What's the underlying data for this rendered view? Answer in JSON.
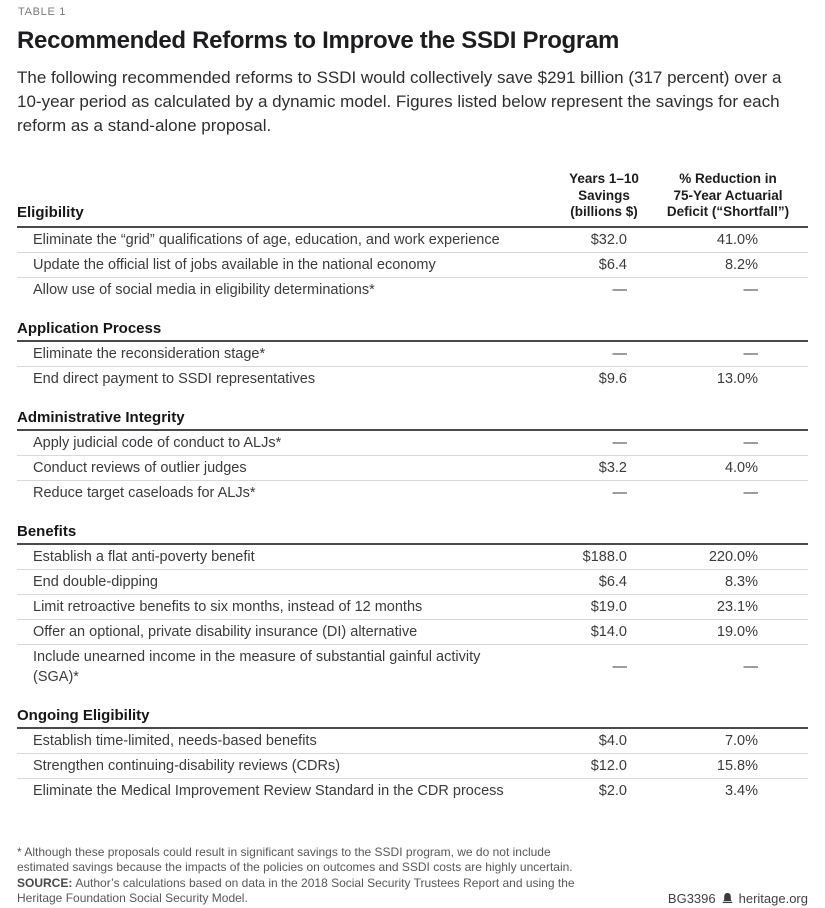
{
  "table_label": "TABLE 1",
  "title": "Recommended Reforms to Improve the SSDI Program",
  "intro": "The following recommended reforms to SSDI would collectively save $291 billion (317 percent) over a 10-year period as calculated by a dynamic model. Figures listed below represent the savings for each reform as a stand-alone proposal.",
  "columns": {
    "savings": {
      "l1": "Years 1–10",
      "l2": "Savings",
      "l3": "(billions $)"
    },
    "reduction": {
      "l1": "% Reduction in",
      "l2": "75-Year Actuarial",
      "l3": "Deficit (“Shortfall”)"
    }
  },
  "sections": [
    {
      "name": "Eligibility",
      "rows": [
        {
          "label": "Eliminate the “grid” qualifications of age, education, and work experience",
          "savings": "$32.0",
          "reduction": "41.0%"
        },
        {
          "label": "Update the official list of jobs available in the national economy",
          "savings": "$6.4",
          "reduction": "8.2%"
        },
        {
          "label": "Allow use of social media in eligibility determinations*",
          "savings": "—",
          "reduction": "—"
        }
      ]
    },
    {
      "name": "Application Process",
      "rows": [
        {
          "label": "Eliminate the reconsideration stage*",
          "savings": "—",
          "reduction": "—"
        },
        {
          "label": "End direct payment to SSDI representatives",
          "savings": "$9.6",
          "reduction": "13.0%"
        }
      ]
    },
    {
      "name": "Administrative Integrity",
      "rows": [
        {
          "label": "Apply judicial code of conduct to ALJs*",
          "savings": "—",
          "reduction": "—"
        },
        {
          "label": "Conduct reviews of outlier judges",
          "savings": "$3.2",
          "reduction": "4.0%"
        },
        {
          "label": "Reduce target caseloads for ALJs*",
          "savings": "—",
          "reduction": "—"
        }
      ]
    },
    {
      "name": "Benefits",
      "rows": [
        {
          "label": "Establish a flat anti-poverty benefit",
          "savings": "$188.0",
          "reduction": "220.0%"
        },
        {
          "label": "End double-dipping",
          "savings": "$6.4",
          "reduction": "8.3%"
        },
        {
          "label": "Limit retroactive benefits to six months, instead of 12 months",
          "savings": "$19.0",
          "reduction": "23.1%"
        },
        {
          "label": "Offer an optional, private disability insurance (DI) alternative",
          "savings": "$14.0",
          "reduction": "19.0%"
        },
        {
          "label": "Include unearned income in the measure of substantial gainful activity (SGA)*",
          "savings": "—",
          "reduction": "—"
        }
      ]
    },
    {
      "name": "Ongoing Eligibility",
      "rows": [
        {
          "label": "Establish time-limited, needs-based benefits",
          "savings": "$4.0",
          "reduction": "7.0%"
        },
        {
          "label": "Strengthen continuing-disability reviews (CDRs)",
          "savings": "$12.0",
          "reduction": "15.8%"
        },
        {
          "label": "Eliminate the Medical Improvement Review Standard in the CDR process",
          "savings": "$2.0",
          "reduction": "3.4%"
        }
      ]
    }
  ],
  "footer": {
    "footnote": "* Although these proposals could result in significant savings to the SSDI program, we do not include estimated savings because the impacts of the policies on outcomes and SSDI costs are highly uncertain.",
    "source_label": "SOURCE:",
    "source_text": "Author’s calculations based on data in the 2018 Social Security Trustees Report and using the Heritage Foundation Social Security Model.",
    "document_id": "BG3396",
    "site": "heritage.org"
  },
  "colors": {
    "rule_dark": "#4a4a4c",
    "rule_light": "#d8d8d8",
    "text_dark": "#1d1d1f",
    "text_body": "#3b3b3d",
    "text_muted": "#58585a"
  }
}
